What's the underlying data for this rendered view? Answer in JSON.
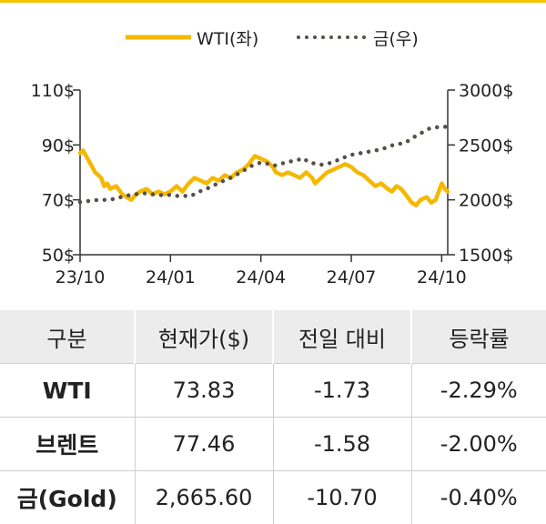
{
  "chart_data": {
    "type": "line",
    "legend": {
      "placement": "top",
      "entries": [
        "WTI(좌)",
        "금(우)"
      ]
    },
    "x_tick_labels": [
      "23/10",
      "24/01",
      "24/04",
      "24/07",
      "24/10"
    ],
    "x_ticks": [
      0,
      3,
      6,
      9,
      12
    ],
    "x_range": [
      0,
      12.2
    ],
    "y_left": {
      "ticks": [
        50,
        70,
        90,
        110
      ],
      "tick_labels": [
        "50$",
        "70$",
        "90$",
        "110$"
      ],
      "range": [
        50,
        110
      ]
    },
    "y_right": {
      "ticks": [
        1500,
        2000,
        2500,
        3000
      ],
      "tick_labels": [
        "1500$",
        "2000$",
        "2500$",
        "3000$"
      ],
      "range": [
        1500,
        3000
      ]
    },
    "series": [
      {
        "name": "WTI(좌)",
        "axis": "left",
        "style": "solid",
        "color": "#f5b800",
        "points": [
          [
            0,
            87
          ],
          [
            0.1,
            88
          ],
          [
            0.2,
            86
          ],
          [
            0.35,
            83
          ],
          [
            0.5,
            80
          ],
          [
            0.7,
            78
          ],
          [
            0.8,
            75
          ],
          [
            0.9,
            76
          ],
          [
            1.0,
            74
          ],
          [
            1.2,
            75
          ],
          [
            1.4,
            72
          ],
          [
            1.55,
            71
          ],
          [
            1.7,
            70
          ],
          [
            1.85,
            72
          ],
          [
            2.0,
            73
          ],
          [
            2.2,
            74
          ],
          [
            2.4,
            72
          ],
          [
            2.6,
            73
          ],
          [
            2.8,
            72
          ],
          [
            3.0,
            73
          ],
          [
            3.2,
            75
          ],
          [
            3.4,
            73
          ],
          [
            3.6,
            76
          ],
          [
            3.8,
            78
          ],
          [
            4.0,
            77
          ],
          [
            4.2,
            76
          ],
          [
            4.4,
            78
          ],
          [
            4.6,
            77
          ],
          [
            4.8,
            79
          ],
          [
            5.0,
            78
          ],
          [
            5.2,
            80
          ],
          [
            5.4,
            81
          ],
          [
            5.6,
            83
          ],
          [
            5.8,
            86
          ],
          [
            6.0,
            85
          ],
          [
            6.2,
            84
          ],
          [
            6.4,
            82
          ],
          [
            6.5,
            80
          ],
          [
            6.7,
            79
          ],
          [
            6.9,
            80
          ],
          [
            7.1,
            79
          ],
          [
            7.3,
            78
          ],
          [
            7.5,
            80
          ],
          [
            7.7,
            78
          ],
          [
            7.8,
            76
          ],
          [
            8.0,
            78
          ],
          [
            8.2,
            80
          ],
          [
            8.4,
            81
          ],
          [
            8.6,
            82
          ],
          [
            8.8,
            83
          ],
          [
            9.0,
            82
          ],
          [
            9.2,
            80
          ],
          [
            9.4,
            79
          ],
          [
            9.6,
            77
          ],
          [
            9.8,
            75
          ],
          [
            10.0,
            76
          ],
          [
            10.2,
            74
          ],
          [
            10.35,
            73
          ],
          [
            10.5,
            75
          ],
          [
            10.65,
            74
          ],
          [
            10.8,
            72
          ],
          [
            11.0,
            69
          ],
          [
            11.15,
            68
          ],
          [
            11.3,
            70
          ],
          [
            11.5,
            71
          ],
          [
            11.65,
            69
          ],
          [
            11.8,
            70
          ],
          [
            12.0,
            76
          ],
          [
            12.1,
            74
          ],
          [
            12.2,
            73
          ]
        ]
      },
      {
        "name": "금(우)",
        "axis": "right",
        "style": "dotted",
        "color": "#55504a",
        "points": [
          [
            0,
            1980
          ],
          [
            0.3,
            1990
          ],
          [
            0.6,
            2000
          ],
          [
            0.9,
            2000
          ],
          [
            1.2,
            2010
          ],
          [
            1.4,
            2030
          ],
          [
            1.6,
            2040
          ],
          [
            1.8,
            2050
          ],
          [
            2.0,
            2055
          ],
          [
            2.2,
            2060
          ],
          [
            2.4,
            2050
          ],
          [
            2.6,
            2045
          ],
          [
            2.8,
            2040
          ],
          [
            3.0,
            2045
          ],
          [
            3.2,
            2035
          ],
          [
            3.4,
            2040
          ],
          [
            3.6,
            2030
          ],
          [
            3.8,
            2050
          ],
          [
            4.0,
            2080
          ],
          [
            4.2,
            2100
          ],
          [
            4.4,
            2130
          ],
          [
            4.6,
            2150
          ],
          [
            4.8,
            2180
          ],
          [
            5.0,
            2200
          ],
          [
            5.2,
            2230
          ],
          [
            5.4,
            2260
          ],
          [
            5.6,
            2300
          ],
          [
            5.8,
            2320
          ],
          [
            6.0,
            2340
          ],
          [
            6.2,
            2330
          ],
          [
            6.4,
            2310
          ],
          [
            6.6,
            2320
          ],
          [
            6.8,
            2340
          ],
          [
            7.0,
            2350
          ],
          [
            7.2,
            2360
          ],
          [
            7.4,
            2380
          ],
          [
            7.6,
            2340
          ],
          [
            7.8,
            2330
          ],
          [
            8.0,
            2320
          ],
          [
            8.2,
            2330
          ],
          [
            8.4,
            2340
          ],
          [
            8.6,
            2370
          ],
          [
            8.8,
            2390
          ],
          [
            9.0,
            2410
          ],
          [
            9.2,
            2420
          ],
          [
            9.4,
            2430
          ],
          [
            9.6,
            2440
          ],
          [
            9.8,
            2450
          ],
          [
            10.0,
            2460
          ],
          [
            10.2,
            2480
          ],
          [
            10.4,
            2500
          ],
          [
            10.6,
            2510
          ],
          [
            10.8,
            2520
          ],
          [
            11.0,
            2560
          ],
          [
            11.2,
            2590
          ],
          [
            11.4,
            2620
          ],
          [
            11.6,
            2650
          ],
          [
            11.8,
            2660
          ],
          [
            12.0,
            2665
          ],
          [
            12.2,
            2665
          ]
        ]
      }
    ]
  },
  "table": {
    "headers": [
      "구분",
      "현재가($)",
      "전일 대비",
      "등락률"
    ],
    "rows": [
      [
        "WTI",
        "73.83",
        "-1.73",
        "-2.29%"
      ],
      [
        "브렌트",
        "77.46",
        "-1.58",
        "-2.00%"
      ],
      [
        "금(Gold)",
        "2,665.60",
        "-10.70",
        "-0.40%"
      ]
    ]
  }
}
